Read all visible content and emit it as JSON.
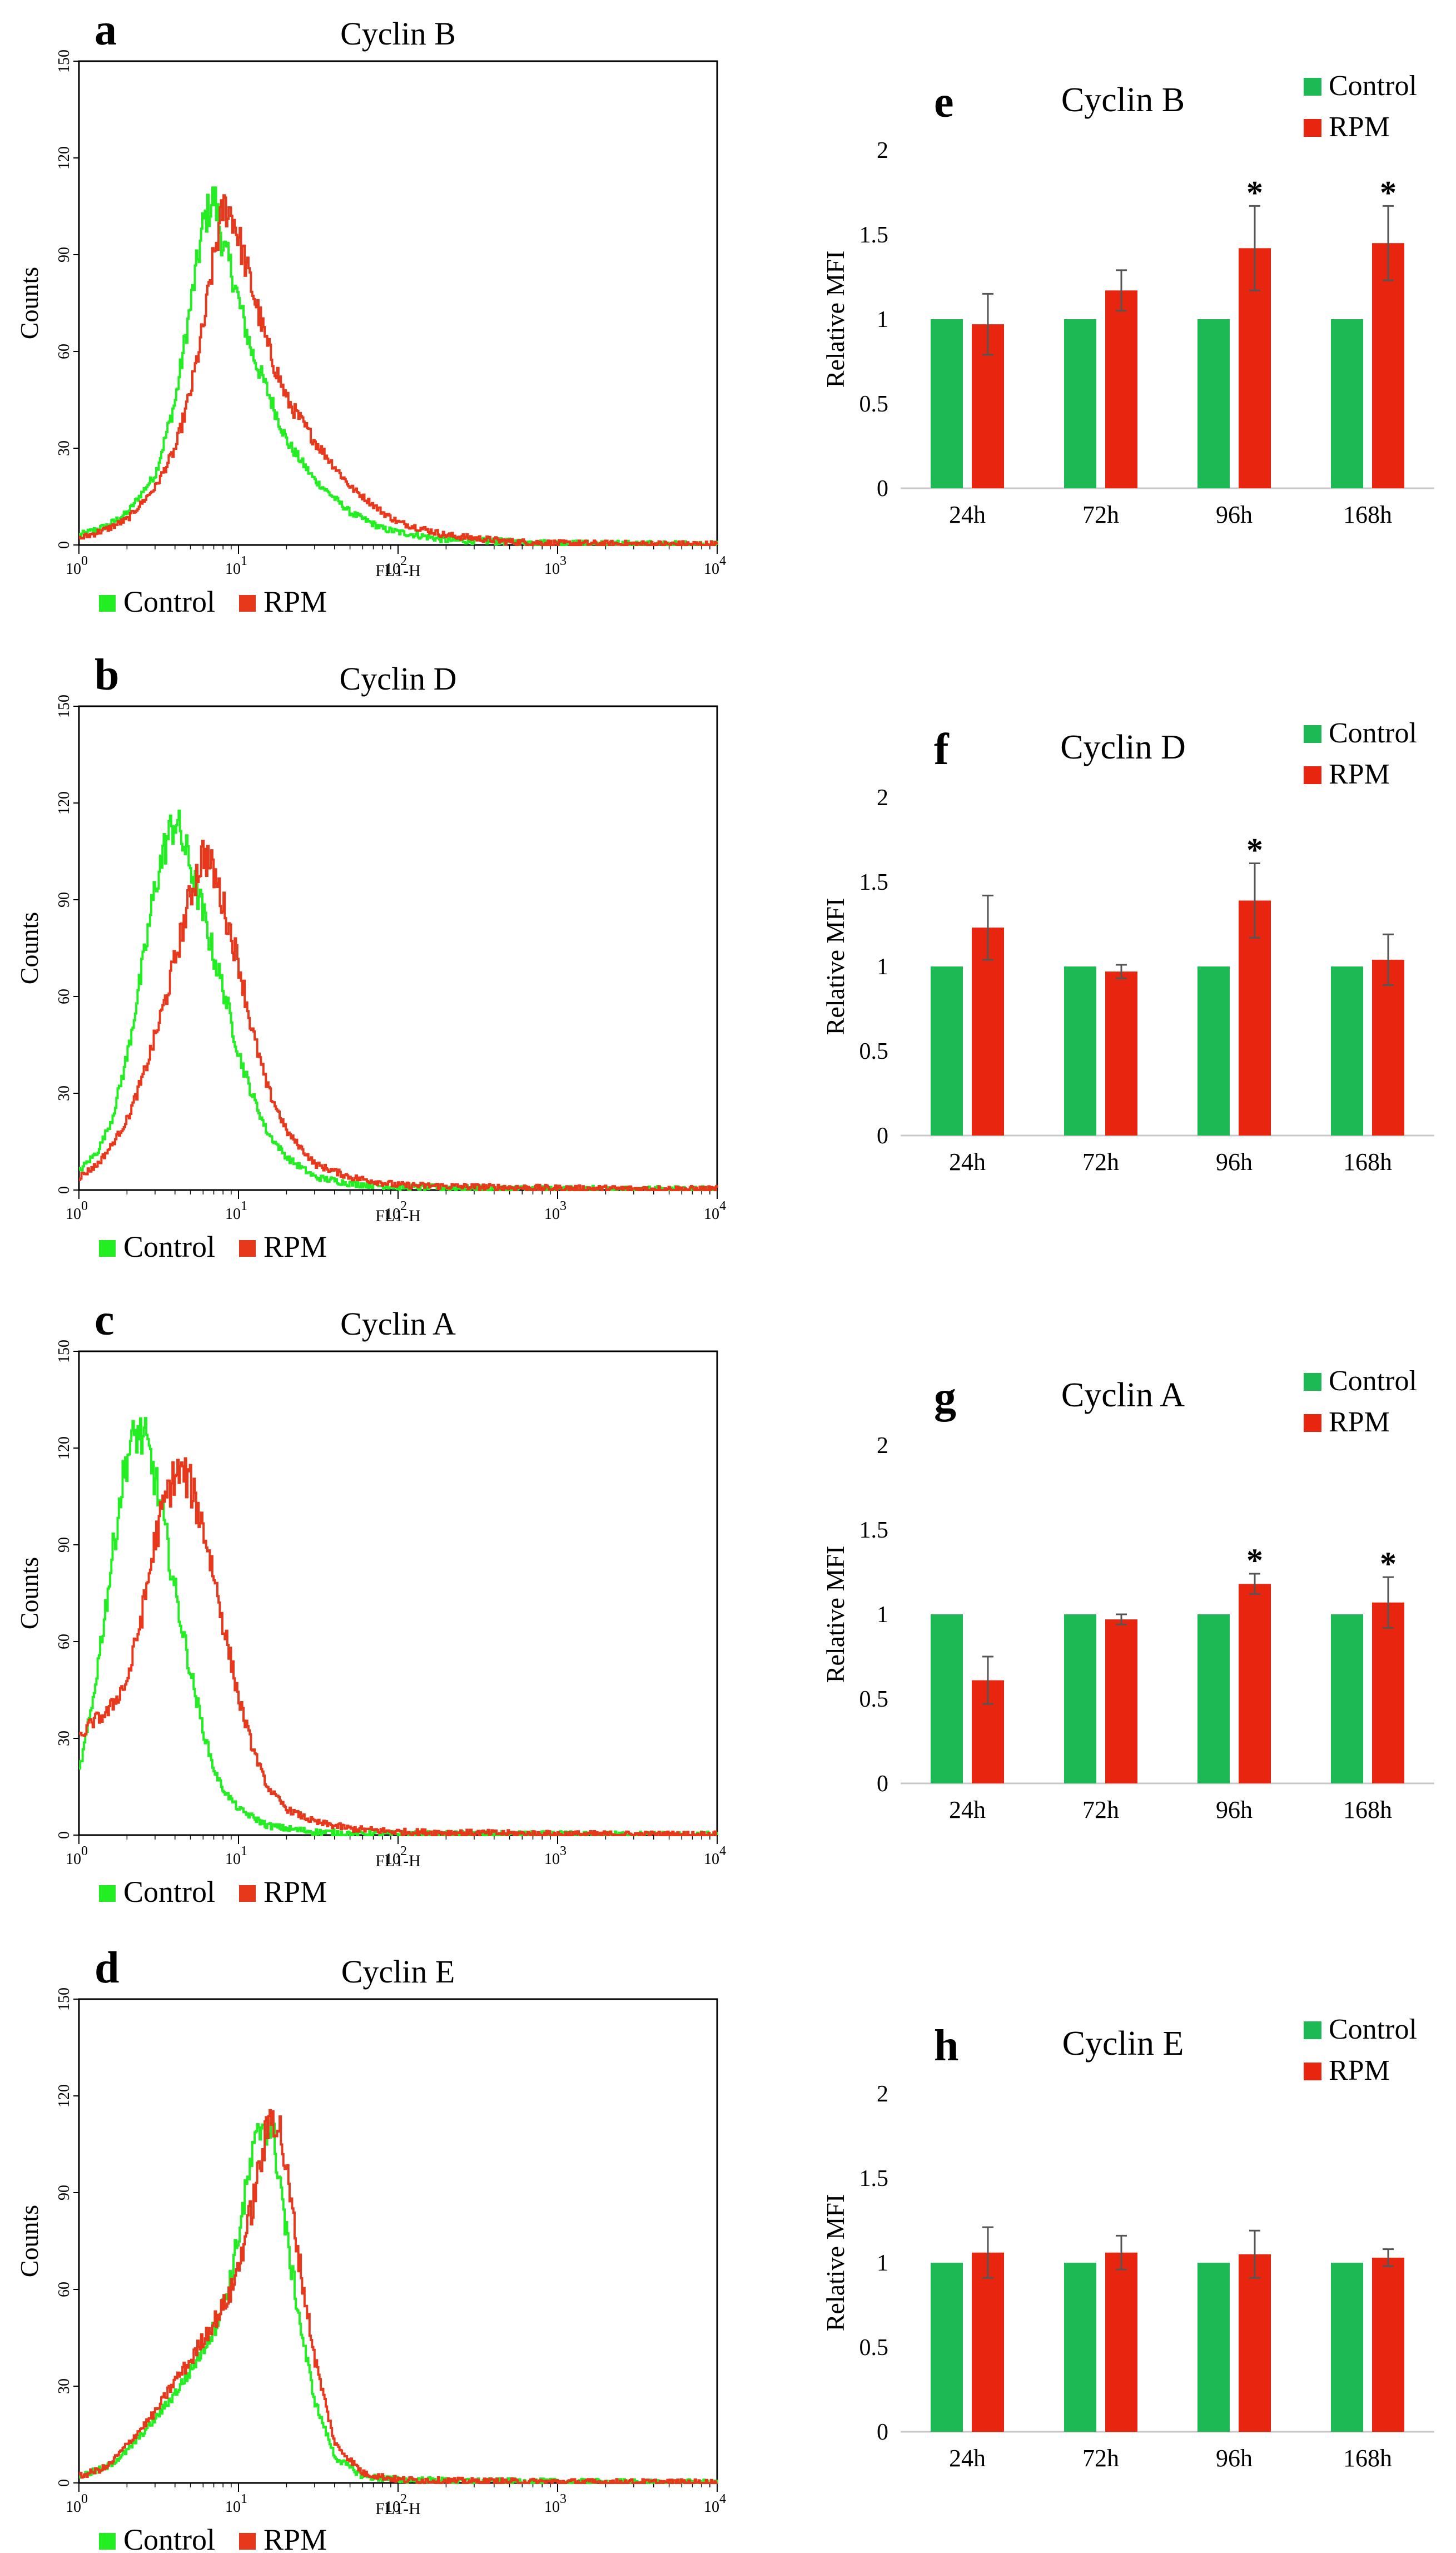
{
  "colors": {
    "hist_control": "#22ee22",
    "hist_rpm": "#e8381c",
    "bar_control": "#1db954",
    "bar_rpm": "#e8250f",
    "error_bar": "#555555"
  },
  "legend": {
    "control": "Control",
    "rpm": "RPM"
  },
  "chart_data": [
    {
      "id": "a",
      "type": "line",
      "letter": "a",
      "title": "Cyclin B",
      "xlabel": "FL1-H",
      "ylabel": "Counts",
      "xscale": "log",
      "xlim": [
        1,
        10000
      ],
      "ylim": [
        0,
        150
      ],
      "yticks": [
        0,
        30,
        60,
        90,
        120,
        150
      ],
      "xticks": [
        {
          "base": "10",
          "exp": "0"
        },
        {
          "base": "10",
          "exp": "1"
        },
        {
          "base": "10",
          "exp": "2"
        },
        {
          "base": "10",
          "exp": "3"
        },
        {
          "base": "10",
          "exp": "4"
        }
      ],
      "series": [
        {
          "name": "Control",
          "x": [
            1,
            1.5,
            2,
            3,
            4,
            5,
            6,
            7,
            8,
            9,
            10,
            12,
            15,
            20,
            30,
            50,
            80,
            100,
            200,
            500,
            1000,
            3000,
            10000
          ],
          "y": [
            3,
            6,
            10,
            22,
            45,
            75,
            100,
            108,
            92,
            85,
            75,
            60,
            48,
            32,
            20,
            10,
            5,
            4,
            1.5,
            1,
            0.5,
            0.3,
            0.2
          ]
        },
        {
          "name": "RPM",
          "x": [
            1,
            1.5,
            2,
            3,
            4,
            5,
            6,
            7,
            8,
            9,
            10,
            12,
            15,
            20,
            30,
            50,
            80,
            100,
            200,
            500,
            1000,
            3000,
            10000
          ],
          "y": [
            2,
            5,
            8,
            18,
            30,
            48,
            68,
            90,
            105,
            103,
            95,
            80,
            62,
            45,
            32,
            18,
            10,
            7,
            3,
            1,
            0.5,
            0.3,
            0.2
          ]
        }
      ]
    },
    {
      "id": "b",
      "type": "line",
      "letter": "b",
      "title": "Cyclin D",
      "xlabel": "FL1-H",
      "ylabel": "Counts",
      "xscale": "log",
      "xlim": [
        1,
        10000
      ],
      "ylim": [
        0,
        150
      ],
      "yticks": [
        0,
        30,
        60,
        90,
        120,
        150
      ],
      "xticks": [
        {
          "base": "10",
          "exp": "0"
        },
        {
          "base": "10",
          "exp": "1"
        },
        {
          "base": "10",
          "exp": "2"
        },
        {
          "base": "10",
          "exp": "3"
        },
        {
          "base": "10",
          "exp": "4"
        }
      ],
      "series": [
        {
          "name": "Control",
          "x": [
            1,
            1.3,
            1.6,
            2,
            2.5,
            3,
            3.5,
            4,
            5,
            6,
            7,
            8,
            10,
            12,
            15,
            20,
            30,
            50,
            100,
            300,
            1000,
            10000
          ],
          "y": [
            6,
            12,
            22,
            42,
            70,
            95,
            108,
            115,
            100,
            85,
            72,
            62,
            42,
            30,
            18,
            10,
            4,
            2,
            1,
            0.5,
            0.3,
            0.2
          ]
        },
        {
          "name": "RPM",
          "x": [
            1,
            1.3,
            1.6,
            2,
            2.5,
            3,
            3.5,
            4,
            5,
            6,
            7,
            8,
            10,
            12,
            15,
            20,
            30,
            50,
            100,
            300,
            1000,
            10000
          ],
          "y": [
            4,
            8,
            14,
            22,
            35,
            48,
            60,
            72,
            92,
            105,
            98,
            88,
            70,
            50,
            32,
            18,
            8,
            4,
            1.5,
            1,
            0.5,
            0.2
          ]
        }
      ]
    },
    {
      "id": "c",
      "type": "line",
      "letter": "c",
      "title": "Cyclin A",
      "xlabel": "FL1-H",
      "ylabel": "Counts",
      "xscale": "log",
      "xlim": [
        1,
        10000
      ],
      "ylim": [
        0,
        150
      ],
      "yticks": [
        0,
        30,
        60,
        90,
        120,
        150
      ],
      "xticks": [
        {
          "base": "10",
          "exp": "0"
        },
        {
          "base": "10",
          "exp": "1"
        },
        {
          "base": "10",
          "exp": "2"
        },
        {
          "base": "10",
          "exp": "3"
        },
        {
          "base": "10",
          "exp": "4"
        }
      ],
      "series": [
        {
          "name": "Control",
          "x": [
            1,
            1.2,
            1.5,
            1.8,
            2,
            2.3,
            2.6,
            3,
            3.5,
            4,
            5,
            6,
            7,
            8,
            10,
            15,
            20,
            30,
            50,
            100,
            1000,
            10000
          ],
          "y": [
            20,
            40,
            75,
            105,
            118,
            125,
            122,
            110,
            92,
            75,
            50,
            32,
            20,
            14,
            8,
            3,
            2,
            1,
            0.5,
            0.3,
            0.2,
            0.1
          ]
        },
        {
          "name": "RPM",
          "x": [
            1,
            1.2,
            1.5,
            2,
            2.5,
            3,
            3.5,
            4,
            4.5,
            5,
            6,
            7,
            8,
            10,
            12,
            15,
            20,
            30,
            50,
            100,
            1000,
            10000
          ],
          "y": [
            30,
            35,
            38,
            48,
            70,
            92,
            105,
            112,
            112,
            108,
            95,
            80,
            65,
            42,
            28,
            15,
            8,
            4,
            2,
            1,
            0.3,
            0.1
          ]
        }
      ]
    },
    {
      "id": "d",
      "type": "line",
      "letter": "d",
      "title": "Cyclin E",
      "xlabel": "FL1-H",
      "ylabel": "Counts",
      "xscale": "log",
      "xlim": [
        1,
        10000
      ],
      "ylim": [
        0,
        150
      ],
      "yticks": [
        0,
        30,
        60,
        90,
        120,
        150
      ],
      "xticks": [
        {
          "base": "10",
          "exp": "0"
        },
        {
          "base": "10",
          "exp": "1"
        },
        {
          "base": "10",
          "exp": "2"
        },
        {
          "base": "10",
          "exp": "3"
        },
        {
          "base": "10",
          "exp": "4"
        }
      ],
      "series": [
        {
          "name": "Control",
          "x": [
            1,
            1.5,
            2,
            3,
            4,
            5,
            6,
            7,
            8,
            9,
            10,
            12,
            14,
            16,
            18,
            20,
            25,
            30,
            40,
            60,
            100,
            300,
            1000,
            10000
          ],
          "y": [
            2,
            5,
            10,
            20,
            28,
            35,
            42,
            48,
            55,
            65,
            78,
            100,
            112,
            110,
            95,
            75,
            45,
            25,
            8,
            2,
            1,
            0.5,
            0.3,
            0.1
          ]
        },
        {
          "name": "RPM",
          "x": [
            1,
            1.5,
            2,
            3,
            4,
            5,
            6,
            7,
            8,
            9,
            10,
            12,
            14,
            16,
            18,
            20,
            25,
            30,
            40,
            60,
            100,
            300,
            1000,
            10000
          ],
          "y": [
            2,
            5,
            12,
            22,
            32,
            38,
            45,
            50,
            55,
            60,
            68,
            85,
            102,
            115,
            110,
            95,
            62,
            38,
            12,
            3,
            1,
            0.5,
            0.3,
            0.1
          ]
        }
      ]
    },
    {
      "id": "e",
      "type": "bar",
      "letter": "e",
      "title": "Cyclin B",
      "ylabel": "Relative MFI",
      "ylim": [
        0,
        2
      ],
      "ytick_labels": [
        "0",
        "0.5",
        "1",
        "1.5",
        "2"
      ],
      "ytick_values": [
        0,
        0.5,
        1,
        1.5,
        2
      ],
      "categories": [
        "24h",
        "72h",
        "96h",
        "168h"
      ],
      "series": [
        {
          "name": "Control",
          "values": [
            1,
            1,
            1,
            1
          ]
        },
        {
          "name": "RPM",
          "values": [
            0.97,
            1.17,
            1.42,
            1.45
          ],
          "errors": [
            0.18,
            0.12,
            0.25,
            0.22
          ]
        }
      ],
      "significance": [
        "",
        "",
        "*",
        "*"
      ]
    },
    {
      "id": "f",
      "type": "bar",
      "letter": "f",
      "title": "Cyclin D",
      "ylabel": "Relative MFI",
      "ylim": [
        0,
        2
      ],
      "ytick_labels": [
        "0",
        "0.5",
        "1",
        "1.5",
        "2"
      ],
      "ytick_values": [
        0,
        0.5,
        1,
        1.5,
        2
      ],
      "categories": [
        "24h",
        "72h",
        "96h",
        "168h"
      ],
      "series": [
        {
          "name": "Control",
          "values": [
            1,
            1,
            1,
            1
          ]
        },
        {
          "name": "RPM",
          "values": [
            1.23,
            0.97,
            1.39,
            1.04
          ],
          "errors": [
            0.19,
            0.04,
            0.22,
            0.15
          ]
        }
      ],
      "significance": [
        "",
        "",
        "*",
        ""
      ]
    },
    {
      "id": "g",
      "type": "bar",
      "letter": "g",
      "title": "Cyclin A",
      "ylabel": "Relative MFI",
      "ylim": [
        0,
        2
      ],
      "ytick_labels": [
        "0",
        "0.5",
        "1",
        "1.5",
        "2"
      ],
      "ytick_values": [
        0,
        0.5,
        1,
        1.5,
        2
      ],
      "categories": [
        "24h",
        "72h",
        "96h",
        "168h"
      ],
      "series": [
        {
          "name": "Control",
          "values": [
            1,
            1,
            1,
            1
          ]
        },
        {
          "name": "RPM",
          "values": [
            0.61,
            0.97,
            1.18,
            1.07
          ],
          "errors": [
            0.14,
            0.03,
            0.06,
            0.15
          ]
        }
      ],
      "significance": [
        "",
        "",
        "*",
        "*"
      ]
    },
    {
      "id": "h",
      "type": "bar",
      "letter": "h",
      "title": "Cyclin E",
      "ylabel": "Relative MFI",
      "ylim": [
        0,
        2
      ],
      "ytick_labels": [
        "0",
        "0.5",
        "1",
        "1.5",
        "2"
      ],
      "ytick_values": [
        0,
        0.5,
        1,
        1.5,
        2
      ],
      "categories": [
        "24h",
        "72h",
        "96h",
        "168h"
      ],
      "series": [
        {
          "name": "Control",
          "values": [
            1,
            1,
            1,
            1
          ]
        },
        {
          "name": "RPM",
          "values": [
            1.06,
            1.06,
            1.05,
            1.03
          ],
          "errors": [
            0.15,
            0.1,
            0.14,
            0.05
          ]
        }
      ],
      "significance": [
        "",
        "",
        "",
        ""
      ]
    }
  ]
}
